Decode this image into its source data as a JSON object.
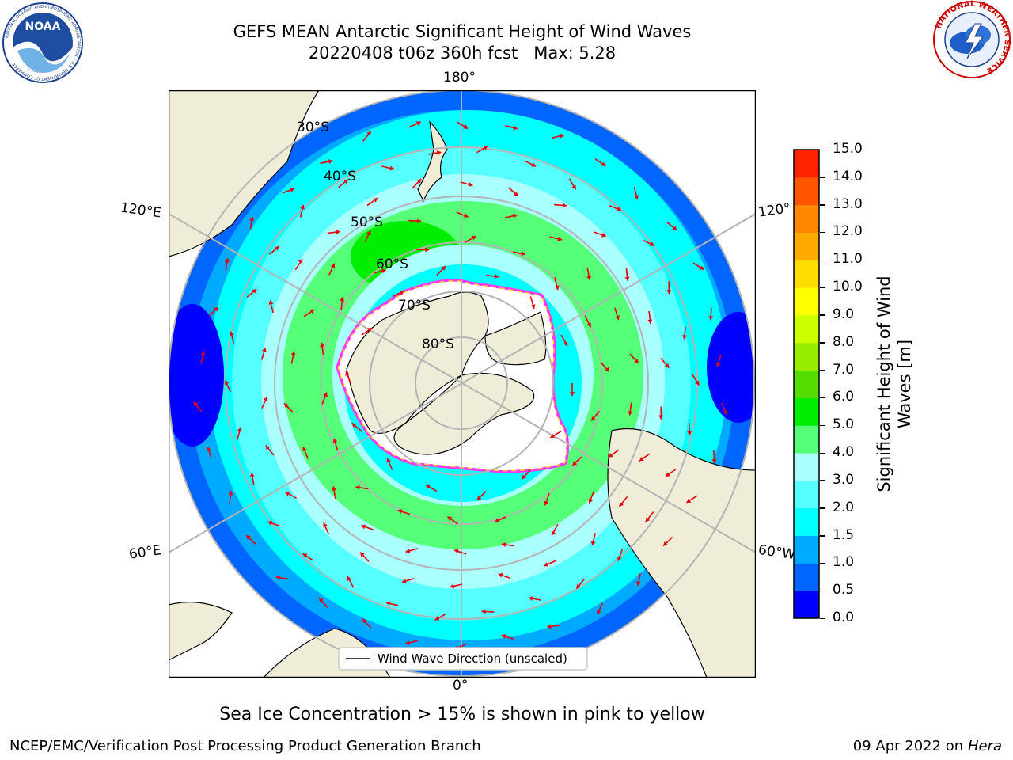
{
  "header": {
    "title_line1": "GEFS MEAN Antarctic Significant Height of Wind Waves",
    "title_line2": "20220408 t06z 360h fcst   Max: 5.28"
  },
  "logos": {
    "noaa_text": "NOAA",
    "noaa_ring_text": "NATIONAL OCEANIC AND ATMOSPHERIC ADMINISTRATION • U.S. DEPARTMENT OF COMMERCE",
    "nws_ring_text": "NATIONAL WEATHER SERVICE"
  },
  "map": {
    "projection": "south-polar-stereographic",
    "lon_labels": {
      "top": "180°",
      "bottom": "0°",
      "left_upper": "120°E",
      "left_lower": "60°E",
      "right_upper": "120°",
      "right_lower": "60°W"
    },
    "lat_labels": [
      "30°S",
      "40°S",
      "50°S",
      "60°S",
      "70°S",
      "80°S"
    ],
    "legend_label": "Wind Wave Direction (unscaled)",
    "land_color": "#efedd8",
    "ice_colors": [
      "#ff33ff",
      "#ffcc33"
    ],
    "arrow_color": "#e8000b"
  },
  "colorbar": {
    "label": "Significant Height of Wind Waves [m]",
    "label_line1": "Significant Height of Wind",
    "label_line2": "Waves [m]",
    "ticks": [
      "0.0",
      "0.5",
      "1.0",
      "1.5",
      "2.0",
      "3.0",
      "4.0",
      "5.0",
      "6.0",
      "7.0",
      "8.0",
      "9.0",
      "10.0",
      "11.0",
      "12.0",
      "13.0",
      "14.0",
      "15.0"
    ],
    "colors": [
      "#0000ff",
      "#0066ff",
      "#00aaff",
      "#00ffff",
      "#55ffff",
      "#aaffff",
      "#55ff77",
      "#00ee00",
      "#55dd00",
      "#99ee00",
      "#ccff00",
      "#ffff00",
      "#ffdd00",
      "#ffaa00",
      "#ff8800",
      "#ff5500",
      "#ff2200",
      "#ff0000"
    ]
  },
  "caption": "Sea Ice Concentration > 15% is shown in pink to yellow",
  "footer": {
    "left": "NCEP/EMC/Verification Post Processing Product Generation Branch",
    "right_date": "09 Apr 2022 on ",
    "right_host": "Hera"
  }
}
